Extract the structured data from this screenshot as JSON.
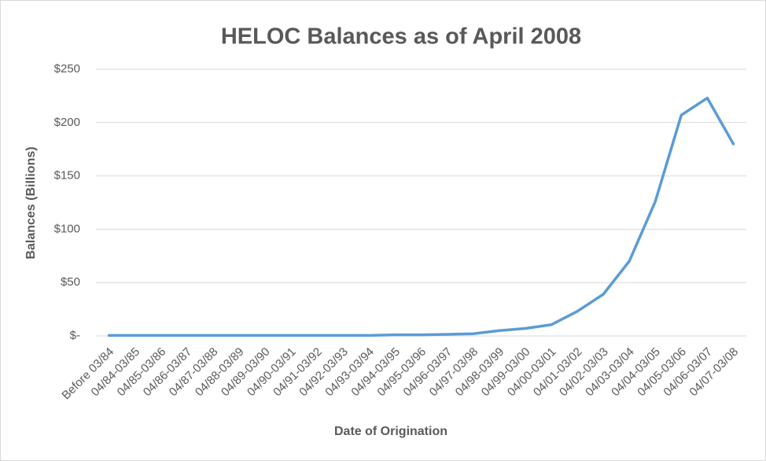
{
  "chart_data": {
    "type": "line",
    "title": "HELOC Balances as of April 2008",
    "x_label": "Date of Origination",
    "y_label": "Balances (Billions)",
    "categories": [
      "Before 03/84",
      "04/84-03/85",
      "04/85-03/86",
      "04/86-03/87",
      "04/87-03/88",
      "04/88-03/89",
      "04/89-03/90",
      "04/90-03/91",
      "04/91-03/92",
      "04/92-03/93",
      "04/93-03/94",
      "04/94-03/95",
      "04/95-03/96",
      "04/96-03/97",
      "04/97-03/98",
      "04/98-03/99",
      "04/99-03/00",
      "04/00-03/01",
      "04/01-03/02",
      "04/02-03/03",
      "04/03-03/04",
      "04/04-03/05",
      "04/05-03/06",
      "04/06-03/07",
      "04/07-03/08"
    ],
    "values": [
      0.5,
      0.5,
      0.5,
      0.5,
      0.5,
      0.5,
      0.5,
      0.5,
      0.5,
      0.5,
      0.5,
      1,
      1,
      1.5,
      2,
      5,
      7,
      10.5,
      23,
      39,
      70,
      126,
      207,
      223,
      180
    ],
    "color": "#5b9bd5",
    "ylim": [
      0,
      250
    ],
    "yticks": [
      {
        "value": 0,
        "label": "$-"
      },
      {
        "value": 50,
        "label": "$50"
      },
      {
        "value": 100,
        "label": "$100"
      },
      {
        "value": 150,
        "label": "$150"
      },
      {
        "value": 200,
        "label": "$200"
      },
      {
        "value": 250,
        "label": "$250"
      }
    ],
    "grid": true
  }
}
